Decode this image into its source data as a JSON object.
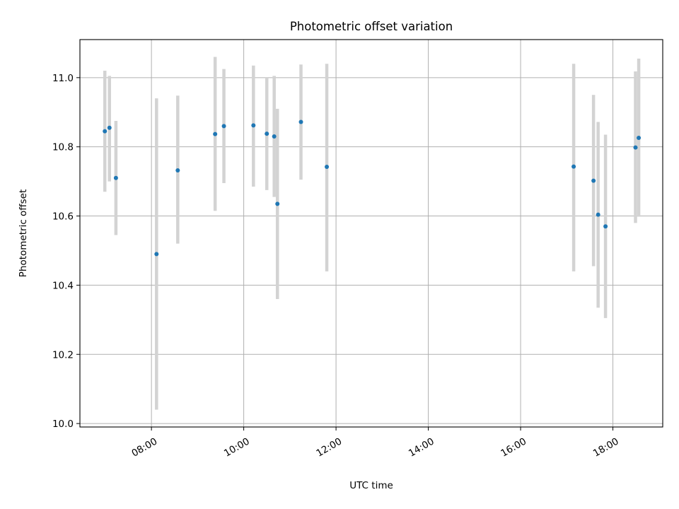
{
  "chart_data": {
    "type": "scatter",
    "title": "Photometric offset variation",
    "xlabel": "UTC time",
    "ylabel": "Photometric offset",
    "x_unit": "hours UTC",
    "xlim": [
      6.45,
      19.08
    ],
    "ylim": [
      9.99,
      11.11
    ],
    "x_ticks": [
      {
        "value": 8,
        "label": "08:00"
      },
      {
        "value": 10,
        "label": "10:00"
      },
      {
        "value": 12,
        "label": "12:00"
      },
      {
        "value": 14,
        "label": "14:00"
      },
      {
        "value": 16,
        "label": "16:00"
      },
      {
        "value": 18,
        "label": "18:00"
      }
    ],
    "y_ticks": [
      {
        "value": 10.0,
        "label": "10.0"
      },
      {
        "value": 10.2,
        "label": "10.2"
      },
      {
        "value": 10.4,
        "label": "10.4"
      },
      {
        "value": 10.6,
        "label": "10.6"
      },
      {
        "value": 10.8,
        "label": "10.8"
      },
      {
        "value": 11.0,
        "label": "11.0"
      }
    ],
    "grid": true,
    "colors": {
      "point": "#1f77b4",
      "error_bar": "#d3d3d3",
      "grid": "#b0b0b0",
      "axes": "#000000"
    },
    "points": [
      {
        "x": 6.99,
        "y": 10.845,
        "lo": 10.67,
        "hi": 11.02
      },
      {
        "x": 7.09,
        "y": 10.855,
        "lo": 10.7,
        "hi": 11.005
      },
      {
        "x": 7.23,
        "y": 10.71,
        "lo": 10.545,
        "hi": 10.875
      },
      {
        "x": 8.11,
        "y": 10.49,
        "lo": 10.04,
        "hi": 10.94
      },
      {
        "x": 8.57,
        "y": 10.732,
        "lo": 10.52,
        "hi": 10.948
      },
      {
        "x": 9.38,
        "y": 10.837,
        "lo": 10.615,
        "hi": 11.06
      },
      {
        "x": 9.57,
        "y": 10.86,
        "lo": 10.695,
        "hi": 11.025
      },
      {
        "x": 10.21,
        "y": 10.862,
        "lo": 10.685,
        "hi": 11.035
      },
      {
        "x": 10.5,
        "y": 10.838,
        "lo": 10.675,
        "hi": 11.0
      },
      {
        "x": 10.66,
        "y": 10.83,
        "lo": 10.655,
        "hi": 11.005
      },
      {
        "x": 10.73,
        "y": 10.635,
        "lo": 10.36,
        "hi": 10.91
      },
      {
        "x": 11.24,
        "y": 10.872,
        "lo": 10.705,
        "hi": 11.038
      },
      {
        "x": 11.8,
        "y": 10.742,
        "lo": 10.44,
        "hi": 11.04
      },
      {
        "x": 17.15,
        "y": 10.743,
        "lo": 10.44,
        "hi": 11.04
      },
      {
        "x": 17.58,
        "y": 10.702,
        "lo": 10.455,
        "hi": 10.95
      },
      {
        "x": 17.68,
        "y": 10.604,
        "lo": 10.335,
        "hi": 10.872
      },
      {
        "x": 17.84,
        "y": 10.57,
        "lo": 10.305,
        "hi": 10.835
      },
      {
        "x": 18.49,
        "y": 10.798,
        "lo": 10.58,
        "hi": 11.018
      },
      {
        "x": 18.56,
        "y": 10.826,
        "lo": 10.598,
        "hi": 11.055
      }
    ]
  }
}
